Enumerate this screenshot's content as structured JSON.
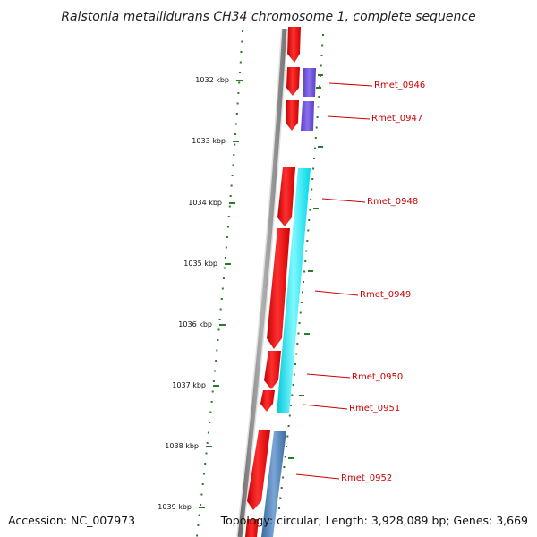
{
  "title": "Ralstonia metallidurans CH34 chromosome 1, complete sequence",
  "accession": "Accession: NC_007973",
  "topology": "Topology: circular; Length: 3,928,089 bp; Genes: 3,669",
  "colors": {
    "backbone": "#8c8c8c",
    "tick": "#2a7a2a",
    "forward_cds": "#ff0000",
    "label": "#cc0000",
    "purple_feature": "#6a4fd0",
    "cyan_feature": "#00e8f0",
    "steelblue_feature": "#4a7fb8"
  },
  "kbp_labels": [
    "1032 kbp",
    "1033 kbp",
    "1034 kbp",
    "1035 kbp",
    "1036 kbp",
    "1037 kbp",
    "1038 kbp",
    "1039 kbp"
  ],
  "genes": [
    "Rmet_0946",
    "Rmet_0947",
    "Rmet_0948",
    "Rmet_0949",
    "Rmet_0950",
    "Rmet_0951",
    "Rmet_0952"
  ]
}
